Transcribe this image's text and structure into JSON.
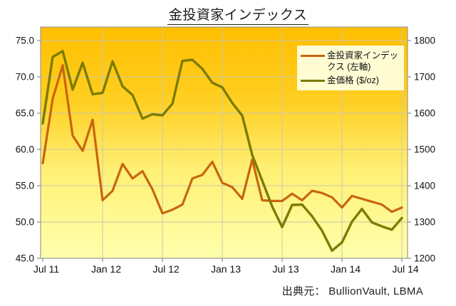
{
  "title": "金投資家インデックス",
  "source_note": "出典元： BullionVault, LBMA",
  "legend": {
    "items": [
      {
        "label": "金投資家インデックス (左軸)",
        "color": "#C8650F"
      },
      {
        "label": "金価格 ($/oz)",
        "color": "#7C7C00"
      }
    ]
  },
  "chart_data": {
    "type": "line",
    "title": "金投資家インデックス",
    "months": [
      "2011-07",
      "2011-08",
      "2011-09",
      "2011-10",
      "2011-11",
      "2011-12",
      "2012-01",
      "2012-02",
      "2012-03",
      "2012-04",
      "2012-05",
      "2012-06",
      "2012-07",
      "2012-08",
      "2012-09",
      "2012-10",
      "2012-11",
      "2012-12",
      "2013-01",
      "2013-02",
      "2013-03",
      "2013-04",
      "2013-05",
      "2013-06",
      "2013-07",
      "2013-08",
      "2013-09",
      "2013-10",
      "2013-11",
      "2013-12",
      "2014-01",
      "2014-02",
      "2014-03",
      "2014-04",
      "2014-05",
      "2014-06",
      "2014-07"
    ],
    "series": [
      {
        "name": "金投資家インデックス (左軸)",
        "axis": "left",
        "color": "#C8650F",
        "values": [
          58.1,
          67.0,
          71.6,
          61.9,
          59.8,
          64.1,
          53.0,
          54.3,
          58.0,
          56.0,
          57.0,
          54.5,
          51.2,
          51.7,
          52.4,
          56.0,
          56.5,
          58.3,
          55.4,
          54.8,
          53.2,
          58.6,
          53.0,
          52.9,
          52.9,
          53.9,
          53.0,
          54.3,
          54.0,
          53.4,
          52.0,
          53.6,
          53.2,
          52.8,
          52.4,
          51.4,
          52.0
        ]
      },
      {
        "name": "金価格 ($/oz)",
        "axis": "right",
        "color": "#7C7C00",
        "values": [
          1572,
          1755,
          1771,
          1665,
          1739,
          1652,
          1656,
          1743,
          1674,
          1650,
          1585,
          1597,
          1594,
          1626,
          1744,
          1747,
          1722,
          1684,
          1671,
          1628,
          1593,
          1485,
          1414,
          1343,
          1286,
          1347,
          1348,
          1316,
          1276,
          1221,
          1244,
          1301,
          1336,
          1299,
          1288,
          1279,
          1311
        ]
      }
    ],
    "left_axis": {
      "min": 45,
      "max": 75,
      "step": 5,
      "tick_labels": [
        "45.0",
        "50.0",
        "55.0",
        "60.0",
        "65.0",
        "70.0",
        "75.0"
      ]
    },
    "right_axis": {
      "min": 1200,
      "max": 1800,
      "step": 100,
      "tick_labels": [
        "1200",
        "1300",
        "1400",
        "1500",
        "1600",
        "1700",
        "1800"
      ]
    },
    "x_axis": {
      "tick_labels": [
        "Jul 11",
        "Jan 12",
        "Jul 12",
        "Jan 13",
        "Jul 13",
        "Jan 14",
        "Jul 14"
      ],
      "months_per_tick": 6
    },
    "grid": "on",
    "legend_position": "top-right-inside",
    "plot_background": {
      "gradient_stops": [
        {
          "offset": "0%",
          "color": "#FFBE00"
        },
        {
          "offset": "32%",
          "color": "#FFCF22"
        },
        {
          "offset": "62%",
          "color": "#FFF075"
        },
        {
          "offset": "100%",
          "color": "#FFFFAD"
        }
      ]
    },
    "gridline_color": "#CBC8AE",
    "axis_line_color": "#9B9B8E",
    "tick_color": "#8c8c8c",
    "label_color": "#111111"
  }
}
